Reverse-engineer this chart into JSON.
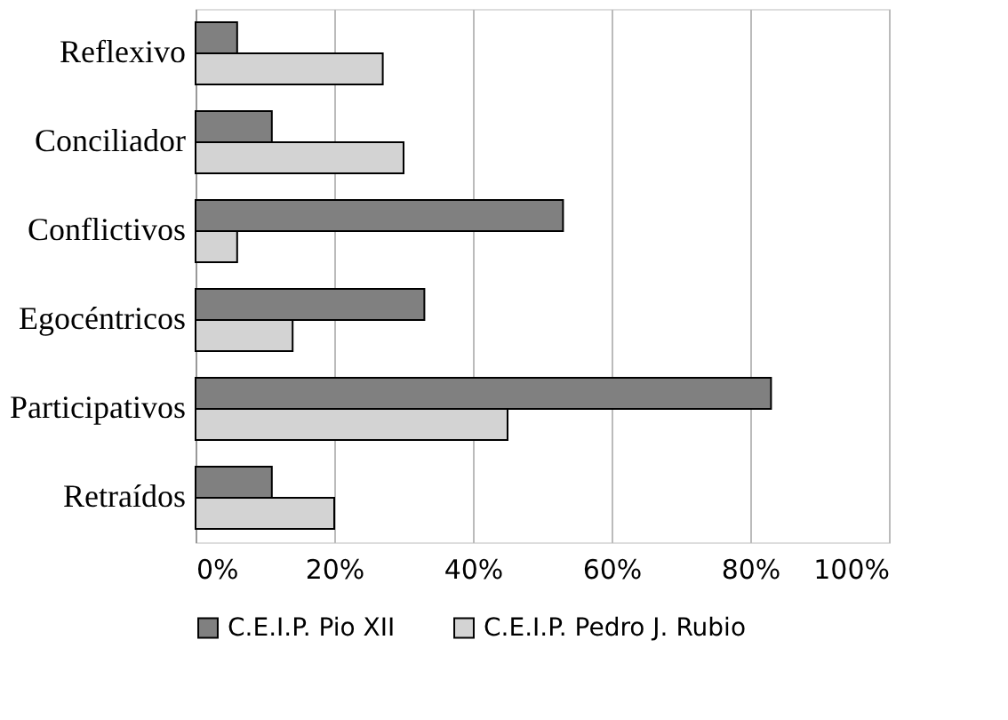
{
  "chart_data": {
    "type": "bar",
    "orientation": "horizontal",
    "categories": [
      "Reflexivo",
      "Conciliador",
      "Conflictivos",
      "Egocéntricos",
      "Participativos",
      "Retraídos"
    ],
    "series": [
      {
        "name": "C.E.I.P. Pio XII",
        "color": "#808080",
        "values": [
          6,
          11,
          53,
          33,
          83,
          11
        ]
      },
      {
        "name": "C.E.I.P. Pedro J. Rubio",
        "color": "#d3d3d3",
        "values": [
          27,
          30,
          6,
          14,
          45,
          20
        ]
      }
    ],
    "xlim": [
      0,
      100
    ],
    "xticks": [
      {
        "value": 0,
        "label": "0%"
      },
      {
        "value": 20,
        "label": "20%"
      },
      {
        "value": 40,
        "label": "40%"
      },
      {
        "value": 60,
        "label": "60%"
      },
      {
        "value": 80,
        "label": "80%"
      },
      {
        "value": 100,
        "label": "100%"
      }
    ],
    "grid": "x",
    "legend": "bottom"
  }
}
